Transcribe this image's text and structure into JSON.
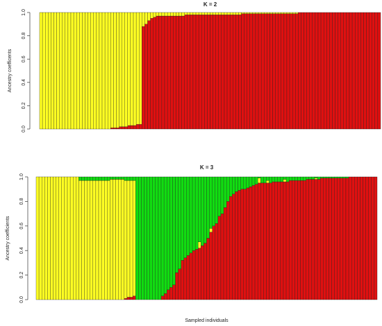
{
  "chart_data": [
    {
      "type": "bar",
      "stacked": true,
      "title": "K = 2",
      "ylabel": "Ancestry coefficents",
      "ylim": [
        0,
        1
      ],
      "yticks": [
        {
          "value": 0,
          "label": "0.0"
        },
        0.2,
        0.4,
        0.6,
        0.8,
        {
          "value": 1,
          "label": "1.0"
        }
      ],
      "series": [
        {
          "color": "#e01010",
          "values": [
            0,
            0,
            0,
            0,
            0,
            0,
            0,
            0,
            0,
            0,
            0,
            0,
            0,
            0,
            0,
            0,
            0,
            0,
            0,
            0,
            0,
            0,
            0,
            0,
            0,
            0.01,
            0.01,
            0.01,
            0.02,
            0.02,
            0.02,
            0.03,
            0.03,
            0.03,
            0.04,
            0.04,
            0.88,
            0.9,
            0.93,
            0.95,
            0.96,
            0.97,
            0.97,
            0.97,
            0.97,
            0.97,
            0.97,
            0.97,
            0.97,
            0.97,
            0.97,
            0.98,
            0.98,
            0.98,
            0.98,
            0.98,
            0.98,
            0.98,
            0.98,
            0.98,
            0.98,
            0.98,
            0.98,
            0.98,
            0.98,
            0.98,
            0.98,
            0.98,
            0.98,
            0.98,
            0.98,
            0.99,
            0.99,
            0.99,
            0.99,
            0.99,
            0.99,
            0.99,
            0.99,
            0.99,
            0.99,
            0.99,
            0.99,
            0.99,
            0.99,
            0.99,
            0.99,
            0.99,
            0.99,
            0.99,
            0.99,
            1,
            1,
            1,
            1,
            1,
            1,
            1,
            1,
            1,
            1,
            1,
            1,
            1,
            1,
            1,
            1,
            1,
            1,
            1,
            1,
            1,
            1,
            1,
            1,
            1,
            1,
            1,
            1,
            1
          ]
        },
        {
          "color": "#ffff22",
          "values": [
            1,
            1,
            1,
            1,
            1,
            1,
            1,
            1,
            1,
            1,
            1,
            1,
            1,
            1,
            1,
            1,
            1,
            1,
            1,
            1,
            1,
            1,
            1,
            1,
            1,
            0.99,
            0.99,
            0.99,
            0.98,
            0.98,
            0.98,
            0.97,
            0.97,
            0.97,
            0.96,
            0.96,
            0.12,
            0.1,
            0.07,
            0.05,
            0.04,
            0.03,
            0.03,
            0.03,
            0.03,
            0.03,
            0.03,
            0.03,
            0.03,
            0.03,
            0.03,
            0.02,
            0.02,
            0.02,
            0.02,
            0.02,
            0.02,
            0.02,
            0.02,
            0.02,
            0.02,
            0.02,
            0.02,
            0.02,
            0.02,
            0.02,
            0.02,
            0.02,
            0.02,
            0.02,
            0.02,
            0.01,
            0.01,
            0.01,
            0.01,
            0.01,
            0.01,
            0.01,
            0.01,
            0.01,
            0.01,
            0.01,
            0.01,
            0.01,
            0.01,
            0.01,
            0.01,
            0.01,
            0.01,
            0.01,
            0.01,
            0,
            0,
            0,
            0,
            0,
            0,
            0,
            0,
            0,
            0,
            0,
            0,
            0,
            0,
            0,
            0,
            0,
            0,
            0,
            0,
            0,
            0,
            0,
            0,
            0,
            0,
            0,
            0,
            0
          ]
        }
      ]
    },
    {
      "type": "bar",
      "stacked": true,
      "title": "K = 3",
      "ylabel": "Ancestry coefficients",
      "xlabel": "Sampled individuals",
      "ylim": [
        0,
        1
      ],
      "yticks": [
        {
          "value": 0,
          "label": "0.0"
        },
        0.2,
        0.4,
        0.6,
        0.8,
        {
          "value": 1,
          "label": "1.0"
        }
      ],
      "series": [
        {
          "color": "#e01010",
          "values": [
            0,
            0,
            0,
            0,
            0,
            0,
            0,
            0,
            0,
            0,
            0,
            0,
            0,
            0,
            0,
            0,
            0,
            0,
            0,
            0,
            0,
            0,
            0,
            0,
            0,
            0,
            0,
            0,
            0,
            0,
            0,
            0.01,
            0.02,
            0.02,
            0.03,
            0,
            0,
            0,
            0,
            0,
            0,
            0,
            0,
            0,
            0.03,
            0.05,
            0.08,
            0.1,
            0.12,
            0.22,
            0.25,
            0.32,
            0.34,
            0.36,
            0.38,
            0.4,
            0.41,
            0.42,
            0.44,
            0.46,
            0.5,
            0.55,
            0.6,
            0.62,
            0.68,
            0.7,
            0.75,
            0.8,
            0.84,
            0.86,
            0.88,
            0.89,
            0.9,
            0.9,
            0.91,
            0.92,
            0.93,
            0.94,
            0.95,
            0.95,
            0.95,
            0.95,
            0.95,
            0.96,
            0.96,
            0.96,
            0.96,
            0.96,
            0.96,
            0.97,
            0.97,
            0.97,
            0.97,
            0.97,
            0.97,
            0.98,
            0.98,
            0.98,
            0.98,
            0.98,
            0.99,
            0.99,
            0.99,
            0.99,
            0.99,
            0.99,
            0.99,
            0.99,
            0.99,
            0.99,
            1,
            1,
            1,
            1,
            1,
            1,
            1,
            1,
            1,
            1
          ]
        },
        {
          "color": "#ffff22",
          "values": [
            1,
            1,
            1,
            1,
            1,
            1,
            1,
            1,
            1,
            1,
            1,
            1,
            1,
            1,
            1,
            0.97,
            0.97,
            0.97,
            0.97,
            0.97,
            0.97,
            0.97,
            0.97,
            0.97,
            0.97,
            0.97,
            0.98,
            0.98,
            0.98,
            0.98,
            0.98,
            0.96,
            0.95,
            0.95,
            0.94,
            0,
            0,
            0,
            0,
            0,
            0,
            0,
            0,
            0,
            0,
            0,
            0,
            0,
            0,
            0,
            0,
            0,
            0,
            0,
            0,
            0,
            0,
            0.05,
            0,
            0,
            0,
            0.03,
            0,
            0,
            0,
            0,
            0,
            0,
            0,
            0,
            0,
            0,
            0,
            0,
            0,
            0,
            0,
            0,
            0.04,
            0,
            0,
            0.02,
            0,
            0,
            0,
            0,
            0,
            0.02,
            0,
            0,
            0,
            0,
            0,
            0,
            0,
            0,
            0,
            0,
            0.01,
            0,
            0,
            0,
            0,
            0,
            0,
            0,
            0,
            0,
            0,
            0,
            0,
            0,
            0,
            0,
            0,
            0,
            0,
            0,
            0,
            0
          ]
        },
        {
          "color": "#11dd11",
          "values": [
            0,
            0,
            0,
            0,
            0,
            0,
            0,
            0,
            0,
            0,
            0,
            0,
            0,
            0,
            0,
            0.03,
            0.03,
            0.03,
            0.03,
            0.03,
            0.03,
            0.03,
            0.03,
            0.03,
            0.03,
            0.03,
            0.02,
            0.02,
            0.02,
            0.02,
            0.02,
            0.03,
            0.03,
            0.03,
            0.03,
            1,
            1,
            1,
            1,
            1,
            1,
            1,
            1,
            1,
            0.97,
            0.95,
            0.92,
            0.9,
            0.88,
            0.78,
            0.75,
            0.68,
            0.66,
            0.64,
            0.62,
            0.6,
            0.59,
            0.53,
            0.56,
            0.54,
            0.5,
            0.42,
            0.4,
            0.38,
            0.32,
            0.3,
            0.25,
            0.2,
            0.16,
            0.14,
            0.12,
            0.11,
            0.1,
            0.1,
            0.09,
            0.08,
            0.07,
            0.06,
            0.01,
            0.05,
            0.05,
            0.03,
            0.05,
            0.04,
            0.04,
            0.04,
            0.04,
            0.02,
            0.04,
            0.03,
            0.03,
            0.03,
            0.03,
            0.03,
            0.03,
            0.02,
            0.02,
            0.02,
            0.01,
            0.02,
            0.01,
            0.01,
            0.01,
            0.01,
            0.01,
            0.01,
            0.01,
            0.01,
            0.01,
            0.01,
            0,
            0,
            0,
            0,
            0,
            0,
            0,
            0,
            0,
            0
          ]
        }
      ]
    }
  ]
}
